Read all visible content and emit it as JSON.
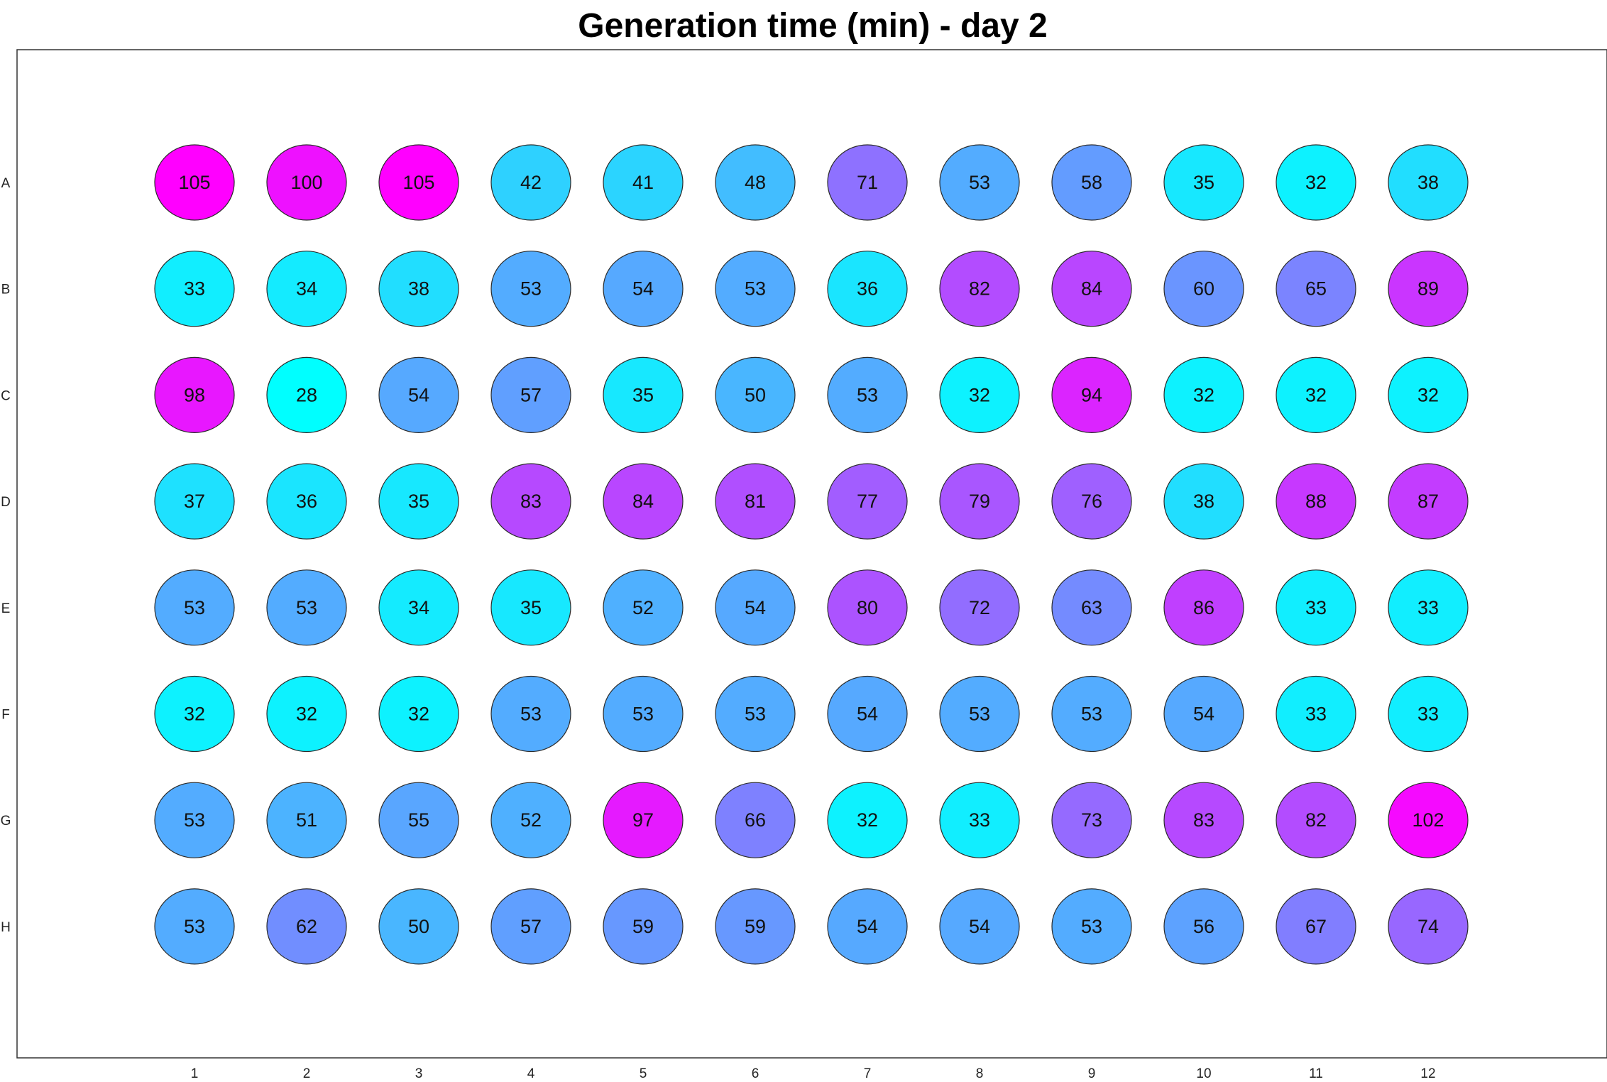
{
  "chart_data": {
    "type": "heatmap",
    "title": "Generation time (min) - day 2",
    "rows": [
      "A",
      "B",
      "C",
      "D",
      "E",
      "F",
      "G",
      "H"
    ],
    "columns": [
      "1",
      "2",
      "3",
      "4",
      "5",
      "6",
      "7",
      "8",
      "9",
      "10",
      "11",
      "12"
    ],
    "values": [
      [
        105,
        100,
        105,
        42,
        41,
        48,
        71,
        53,
        58,
        35,
        32,
        38
      ],
      [
        33,
        34,
        38,
        53,
        54,
        53,
        36,
        82,
        84,
        60,
        65,
        89
      ],
      [
        98,
        28,
        54,
        57,
        35,
        50,
        53,
        32,
        94,
        32,
        32,
        32
      ],
      [
        37,
        36,
        35,
        83,
        84,
        81,
        77,
        79,
        76,
        38,
        88,
        87
      ],
      [
        53,
        53,
        34,
        35,
        52,
        54,
        80,
        72,
        63,
        86,
        33,
        33
      ],
      [
        32,
        32,
        32,
        53,
        53,
        53,
        54,
        53,
        53,
        54,
        33,
        33
      ],
      [
        53,
        51,
        55,
        52,
        97,
        66,
        32,
        33,
        73,
        83,
        82,
        102
      ],
      [
        53,
        62,
        50,
        57,
        59,
        59,
        54,
        54,
        53,
        56,
        67,
        74
      ]
    ],
    "color_range": [
      28,
      105
    ],
    "color_min": "#00ffff",
    "color_max": "#ff00ff",
    "grid": false
  }
}
